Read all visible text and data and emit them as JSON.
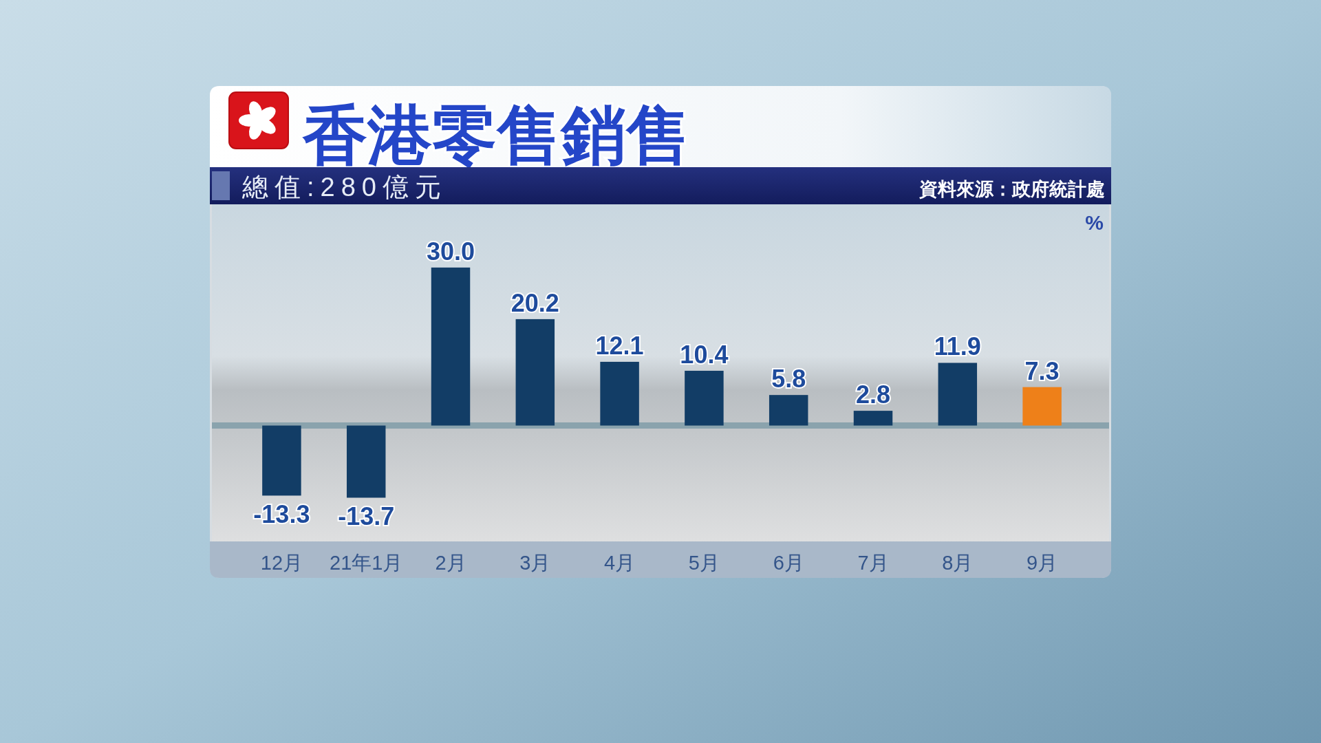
{
  "chart_data": {
    "type": "bar",
    "title": "香港零售銷售",
    "subtitle": "總值:280億元",
    "annotations": [
      "資料來源：政府統計處"
    ],
    "ylabel": "%",
    "categories": [
      "12月",
      "21年1月",
      "2月",
      "3月",
      "4月",
      "5月",
      "6月",
      "7月",
      "8月",
      "9月"
    ],
    "values": [
      -13.3,
      -13.7,
      30.0,
      20.2,
      12.1,
      10.4,
      5.8,
      2.8,
      11.9,
      7.3
    ],
    "value_labels": [
      "-13.3",
      "-13.7",
      "30.0",
      "20.2",
      "12.1",
      "10.4",
      "5.8",
      "2.8",
      "11.9",
      "7.3"
    ],
    "colors": [
      "#123d66",
      "#123d66",
      "#123d66",
      "#123d66",
      "#123d66",
      "#123d66",
      "#123d66",
      "#123d66",
      "#123d66",
      "#ee8019"
    ],
    "ylim": [
      -22,
      42
    ],
    "tick_labels": "x"
  }
}
